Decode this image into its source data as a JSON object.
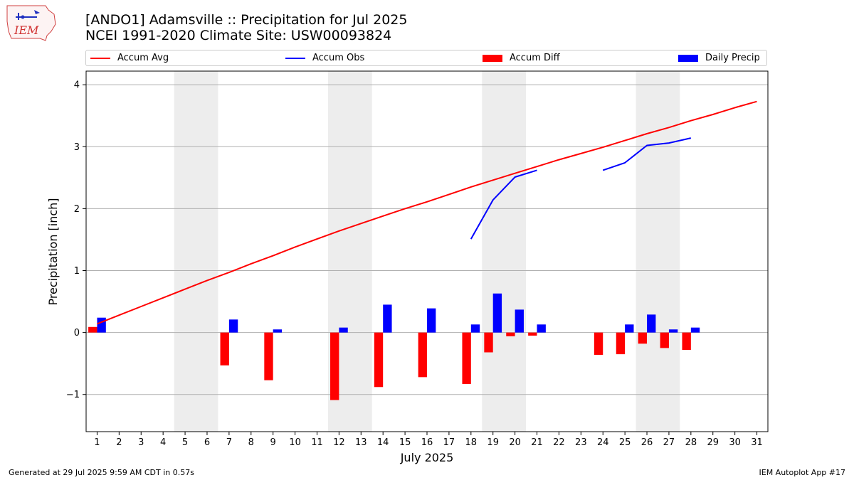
{
  "header": {
    "title_line1": "[ANDO1] Adamsville :: Precipitation for Jul 2025",
    "title_line2": "NCEI 1991-2020 Climate Site: USW00093824",
    "logo_text": "IEM"
  },
  "legend": {
    "items": [
      {
        "label": "Accum Avg",
        "kind": "line",
        "color": "#ff0000"
      },
      {
        "label": "Accum Obs",
        "kind": "line",
        "color": "#0000ff"
      },
      {
        "label": "Accum Diff",
        "kind": "patch",
        "color": "#ff0000"
      },
      {
        "label": "Daily Precip",
        "kind": "patch",
        "color": "#0000ff"
      }
    ]
  },
  "footer": {
    "left": "Generated at 29 Jul 2025 9:59 AM CDT in 0.57s",
    "right": "IEM Autoplot App #17"
  },
  "chart_data": {
    "type": "bar",
    "title": "[ANDO1] Adamsville :: Precipitation for Jul 2025",
    "xlabel": "July 2025",
    "ylabel": "Precipitation [inch]",
    "ylim": [
      -1.6,
      4.22
    ],
    "xlim": [
      0.5,
      31.5
    ],
    "yticks": [
      -1,
      0,
      1,
      2,
      3,
      4
    ],
    "ytick_labels": [
      "−1",
      "0",
      "1",
      "2",
      "3",
      "4"
    ],
    "x": [
      1,
      2,
      3,
      4,
      5,
      6,
      7,
      8,
      9,
      10,
      11,
      12,
      13,
      14,
      15,
      16,
      17,
      18,
      19,
      20,
      21,
      22,
      23,
      24,
      25,
      26,
      27,
      28,
      29,
      30,
      31
    ],
    "xtick_labels": [
      "1",
      "2",
      "3",
      "4",
      "5",
      "6",
      "7",
      "8",
      "9",
      "10",
      "11",
      "12",
      "13",
      "14",
      "15",
      "16",
      "17",
      "18",
      "19",
      "20",
      "21",
      "22",
      "23",
      "24",
      "25",
      "26",
      "27",
      "28",
      "29",
      "30",
      "31"
    ],
    "grid": "y",
    "legend_position": "top",
    "weekend_shading": [
      [
        4.5,
        6.5
      ],
      [
        11.5,
        13.5
      ],
      [
        18.5,
        20.5
      ],
      [
        25.5,
        27.5
      ]
    ],
    "series": [
      {
        "name": "Accum Avg",
        "kind": "line",
        "color": "#ff0000",
        "values": [
          0.14,
          0.28,
          0.42,
          0.56,
          0.7,
          0.84,
          0.97,
          1.11,
          1.24,
          1.38,
          1.51,
          1.64,
          1.76,
          1.88,
          2.0,
          2.11,
          2.23,
          2.35,
          2.46,
          2.57,
          2.68,
          2.79,
          2.89,
          2.99,
          3.1,
          3.21,
          3.31,
          3.42,
          3.52,
          3.63,
          3.73
        ]
      },
      {
        "name": "Accum Obs",
        "kind": "line",
        "color": "#0000ff",
        "values": [
          null,
          null,
          null,
          null,
          null,
          null,
          null,
          null,
          null,
          null,
          null,
          null,
          null,
          null,
          null,
          null,
          null,
          1.51,
          2.14,
          2.51,
          2.62,
          null,
          null,
          2.62,
          2.74,
          3.02,
          3.06,
          3.14,
          null,
          null,
          null
        ]
      },
      {
        "name": "Accum Diff",
        "kind": "bar",
        "color": "#ff0000",
        "values": [
          0.09,
          null,
          null,
          null,
          null,
          null,
          -0.53,
          null,
          -0.77,
          null,
          null,
          -1.09,
          null,
          -0.88,
          null,
          -0.72,
          null,
          -0.83,
          -0.32,
          -0.06,
          -0.05,
          null,
          null,
          -0.36,
          -0.35,
          -0.18,
          -0.25,
          -0.28,
          null,
          null,
          null
        ]
      },
      {
        "name": "Daily Precip",
        "kind": "bar",
        "color": "#0000ff",
        "values": [
          0.24,
          null,
          null,
          null,
          null,
          null,
          0.21,
          null,
          0.05,
          null,
          null,
          0.08,
          null,
          0.45,
          null,
          0.39,
          null,
          0.13,
          0.63,
          0.37,
          0.13,
          null,
          null,
          null,
          0.13,
          0.29,
          0.05,
          0.08,
          null,
          null,
          null
        ]
      }
    ]
  }
}
